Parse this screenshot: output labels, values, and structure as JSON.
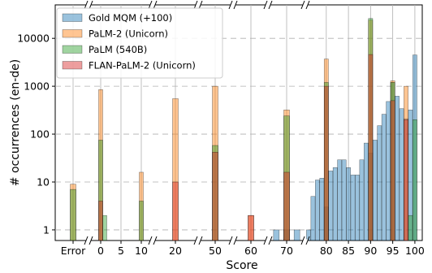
{
  "chart_data": {
    "type": "bar",
    "xlabel": "Score",
    "ylabel": "# occurrences (en-de)",
    "yscale": "log",
    "ylim": [
      0.6,
      50000
    ],
    "yticks": [
      {
        "value": 1,
        "label": "1"
      },
      {
        "value": 10,
        "label": "10"
      },
      {
        "value": 100,
        "label": "100"
      },
      {
        "value": 1000,
        "label": "1000"
      },
      {
        "value": 10000,
        "label": "10000"
      }
    ],
    "broken_x_axis": true,
    "grid": true,
    "legend_position": "top-left",
    "segments": [
      {
        "id": "error",
        "ticks": [
          {
            "value": "Error",
            "label": "Error"
          }
        ]
      },
      {
        "id": "low",
        "ticks": [
          {
            "value": 0,
            "label": "0"
          },
          {
            "value": 5,
            "label": "5"
          },
          {
            "value": 10,
            "label": "10"
          }
        ]
      },
      {
        "id": "s20",
        "ticks": [
          {
            "value": 20,
            "label": "20"
          }
        ]
      },
      {
        "id": "s50",
        "ticks": [
          {
            "value": 50,
            "label": "50"
          }
        ]
      },
      {
        "id": "s60",
        "ticks": [
          {
            "value": 60,
            "label": "60"
          }
        ]
      },
      {
        "id": "s70",
        "ticks": [
          {
            "value": 70,
            "label": "70"
          }
        ]
      },
      {
        "id": "high",
        "ticks": [
          {
            "value": 80,
            "label": "80"
          },
          {
            "value": 85,
            "label": "85"
          },
          {
            "value": 90,
            "label": "90"
          },
          {
            "value": 95,
            "label": "95"
          },
          {
            "value": 100,
            "label": "100"
          }
        ]
      }
    ],
    "series": [
      {
        "name": "Gold MQM (+100)",
        "color": "#1f77b4",
        "points": [
          {
            "x": 68,
            "y": 1
          },
          {
            "x": 70,
            "y": 1
          },
          {
            "x": 72,
            "y": 1
          },
          {
            "x": 76,
            "y": 1
          },
          {
            "x": 77,
            "y": 5
          },
          {
            "x": 78,
            "y": 11
          },
          {
            "x": 79,
            "y": 12
          },
          {
            "x": 80,
            "y": 3
          },
          {
            "x": 81,
            "y": 17
          },
          {
            "x": 82,
            "y": 20
          },
          {
            "x": 83,
            "y": 29
          },
          {
            "x": 84,
            "y": 29
          },
          {
            "x": 85,
            "y": 20
          },
          {
            "x": 86,
            "y": 14
          },
          {
            "x": 87,
            "y": 14
          },
          {
            "x": 88,
            "y": 29
          },
          {
            "x": 89,
            "y": 65
          },
          {
            "x": 90,
            "y": 40
          },
          {
            "x": 91,
            "y": 75
          },
          {
            "x": 92,
            "y": 150
          },
          {
            "x": 93,
            "y": 260
          },
          {
            "x": 94,
            "y": 480
          },
          {
            "x": 95,
            "y": 1200
          },
          {
            "x": 96,
            "y": 620
          },
          {
            "x": 97,
            "y": 340
          },
          {
            "x": 98,
            "y": 210
          },
          {
            "x": 99,
            "y": 320
          },
          {
            "x": 100,
            "y": 4500
          }
        ]
      },
      {
        "name": "PaLM-2 (Unicorn)",
        "color": "#ff7f0e",
        "points": [
          {
            "x": "Error",
            "y": 9
          },
          {
            "x": 0,
            "y": 850
          },
          {
            "x": 10,
            "y": 16
          },
          {
            "x": 20,
            "y": 550
          },
          {
            "x": 50,
            "y": 1000
          },
          {
            "x": 60,
            "y": 2
          },
          {
            "x": 70,
            "y": 320
          },
          {
            "x": 80,
            "y": 3700
          },
          {
            "x": 90,
            "y": 24000
          },
          {
            "x": 95,
            "y": 1300
          },
          {
            "x": 98,
            "y": 1000
          }
        ]
      },
      {
        "name": "PaLM (540B)",
        "color": "#2ca02c",
        "points": [
          {
            "x": "Error",
            "y": 7
          },
          {
            "x": 0,
            "y": 75
          },
          {
            "x": 1,
            "y": 2
          },
          {
            "x": 10,
            "y": 4
          },
          {
            "x": 50,
            "y": 58
          },
          {
            "x": 70,
            "y": 240
          },
          {
            "x": 80,
            "y": 1200
          },
          {
            "x": 90,
            "y": 26000
          },
          {
            "x": 95,
            "y": 1200
          },
          {
            "x": 99,
            "y": 2
          },
          {
            "x": 100,
            "y": 200
          }
        ]
      },
      {
        "name": "FLAN-PaLM-2 (Unicorn)",
        "color": "#d62728",
        "points": [
          {
            "x": 0,
            "y": 4
          },
          {
            "x": 20,
            "y": 10
          },
          {
            "x": 50,
            "y": 42
          },
          {
            "x": 60,
            "y": 2
          },
          {
            "x": 70,
            "y": 16
          },
          {
            "x": 80,
            "y": 1000
          },
          {
            "x": 90,
            "y": 4600
          },
          {
            "x": 95,
            "y": 500
          },
          {
            "x": 98,
            "y": 200
          }
        ]
      }
    ]
  }
}
